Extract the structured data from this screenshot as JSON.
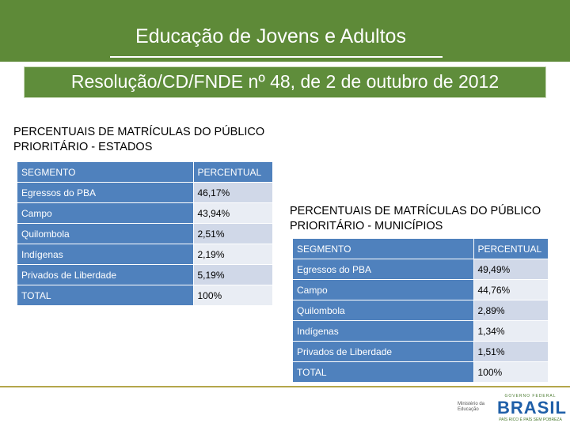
{
  "header": {
    "title": "Educação de Jovens e Adultos",
    "subtitle": "Resolução/CD/FNDE nº 48, de 2 de outubro de 2012"
  },
  "estados": {
    "heading_line1": "PERCENTUAIS DE MATRÍCULAS DO PÚBLICO",
    "heading_line2": "PRIORITÁRIO - ESTADOS",
    "columns": [
      "SEGMENTO",
      "PERCENTUAL"
    ],
    "rows": [
      {
        "segmento": "Egressos do PBA",
        "percentual": "46,17%"
      },
      {
        "segmento": "Campo",
        "percentual": "43,94%"
      },
      {
        "segmento": "Quilombola",
        "percentual": "2,51%"
      },
      {
        "segmento": "Indígenas",
        "percentual": "2,19%"
      },
      {
        "segmento": "Privados de Liberdade",
        "percentual": "5,19%"
      },
      {
        "segmento": "TOTAL",
        "percentual": "100%"
      }
    ]
  },
  "municipios": {
    "heading_line1": "PERCENTUAIS DE MATRÍCULAS DO PÚBLICO",
    "heading_line2": "PRIORITÁRIO - MUNICÍPIOS",
    "columns": [
      "SEGMENTO",
      "PERCENTUAL"
    ],
    "rows": [
      {
        "segmento": "Egressos do PBA",
        "percentual": "49,49%"
      },
      {
        "segmento": "Campo",
        "percentual": "44,76%"
      },
      {
        "segmento": "Quilombola",
        "percentual": "2,89%"
      },
      {
        "segmento": "Indígenas",
        "percentual": "1,34%"
      },
      {
        "segmento": "Privados de Liberdade",
        "percentual": "1,51%"
      },
      {
        "segmento": "TOTAL",
        "percentual": "100%"
      }
    ]
  },
  "footer": {
    "ministry_line1": "Ministério da",
    "ministry_line2": "Educação",
    "brasil_top": "GOVERNO FEDERAL",
    "brasil_word": "BRASIL",
    "brasil_slogan": "PAÍS RICO É PAÍS SEM POBREZA"
  },
  "colors": {
    "header_green": "#5e8a38",
    "table_blue": "#4f81bd",
    "table_light": "#d0d8e8",
    "footer_rule": "#b4a64a"
  }
}
